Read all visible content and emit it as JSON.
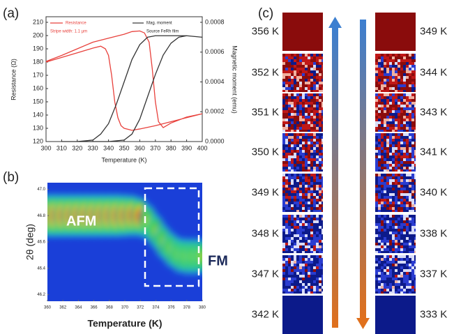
{
  "panel_labels": [
    "(a)",
    "(b)",
    "(c)"
  ],
  "chart_data": [
    {
      "type": "line",
      "xlabel": "Temperature (K)",
      "ylabel": "Resistance (Ω)",
      "y2label": "Magnetic moment (emu)",
      "annotations": [
        "Stripe width: 1.1 µm",
        "Source FeRh film"
      ],
      "xlim": [
        300,
        400
      ],
      "xticks": [
        300,
        310,
        320,
        330,
        340,
        350,
        360,
        370,
        380,
        390,
        400
      ],
      "ylim": [
        120,
        210
      ],
      "yticks": [
        120,
        130,
        140,
        150,
        160,
        170,
        180,
        190,
        200,
        210
      ],
      "y2lim": [
        0,
        0.0008
      ],
      "y2ticks": [
        {
          "value": 0,
          "label": "0.0000"
        },
        0.0002,
        0.0004,
        0.0006,
        0.0008
      ],
      "series": [
        {
          "name": "Resistance",
          "color": "#e8413c",
          "x": [
            300,
            310,
            320,
            330,
            335,
            338,
            340,
            342,
            344,
            346,
            348,
            350,
            355,
            360,
            370,
            380,
            390,
            400,
            390,
            380,
            375,
            372,
            370,
            368,
            366,
            363,
            360,
            355,
            350,
            340,
            330,
            320,
            310,
            300
          ],
          "values": [
            180,
            183.5,
            187,
            190.5,
            192,
            190,
            185,
            170,
            150,
            138,
            132,
            130,
            128.5,
            129.5,
            132,
            135,
            138,
            141,
            138.5,
            134,
            130.5,
            135,
            150,
            175,
            195,
            202,
            203.5,
            203,
            201,
            198,
            195,
            190,
            185,
            180.5
          ]
        },
        {
          "name": "Mag. moment",
          "color": "#333333",
          "axis": "y2",
          "x": [
            310,
            320,
            330,
            340,
            350,
            355,
            360,
            365,
            370,
            375,
            380,
            385,
            390,
            400,
            390,
            380,
            370,
            365,
            360,
            355,
            350,
            345,
            340,
            335,
            330,
            320,
            310
          ],
          "values": [
            0,
            0,
            0,
            0,
            1e-05,
            5e-05,
            0.00015,
            0.0003,
            0.00045,
            0.00058,
            0.00066,
            0.0007,
            0.00071,
            0.0007,
            0.00071,
            0.00071,
            0.00071,
            0.0007,
            0.00065,
            0.00055,
            0.0004,
            0.00025,
            0.00012,
            5e-05,
            1e-05,
            0,
            0
          ]
        }
      ]
    },
    {
      "type": "heatmap",
      "xlabel": "Temperature (K)",
      "ylabel": "2θ (deg)",
      "annotations": [
        "AFM",
        "FM"
      ],
      "xlim": [
        360,
        380
      ],
      "xticks": [
        360,
        362,
        364,
        366,
        368,
        370,
        372,
        374,
        376,
        378,
        380
      ],
      "ylim": [
        46.15,
        47.05
      ],
      "yticks": [
        46.2,
        46.4,
        46.6,
        46.8,
        {
          "value": 47,
          "label": "47.0"
        }
      ],
      "peak": {
        "x": [
          360,
          361,
          362,
          363,
          364,
          365,
          366,
          367,
          368,
          369,
          370,
          371,
          372,
          373,
          374,
          375,
          376,
          377,
          378,
          379,
          380
        ],
        "values": [
          46.8,
          46.8,
          46.8,
          46.8,
          46.8,
          46.8,
          46.8,
          46.8,
          46.8,
          46.8,
          46.8,
          46.8,
          46.79,
          46.75,
          46.68,
          46.6,
          46.54,
          46.5,
          46.49,
          46.49,
          46.49
        ],
        "intensity": [
          1,
          1,
          1,
          1,
          1,
          1,
          1,
          1,
          1,
          1,
          0.95,
          0.9,
          0.8,
          0.6,
          0.5,
          0.5,
          0.55,
          0.6,
          0.65,
          0.65,
          0.6
        ]
      }
    }
  ],
  "image_grid": {
    "left_labels": [
      "356 K",
      "352 K",
      "351 K",
      "350 K",
      "349 K",
      "348 K",
      "347 K",
      "342 K"
    ],
    "right_labels": [
      "349 K",
      "344 K",
      "343 K",
      "341 K",
      "340 K",
      "338 K",
      "337 K",
      "333 K"
    ]
  }
}
